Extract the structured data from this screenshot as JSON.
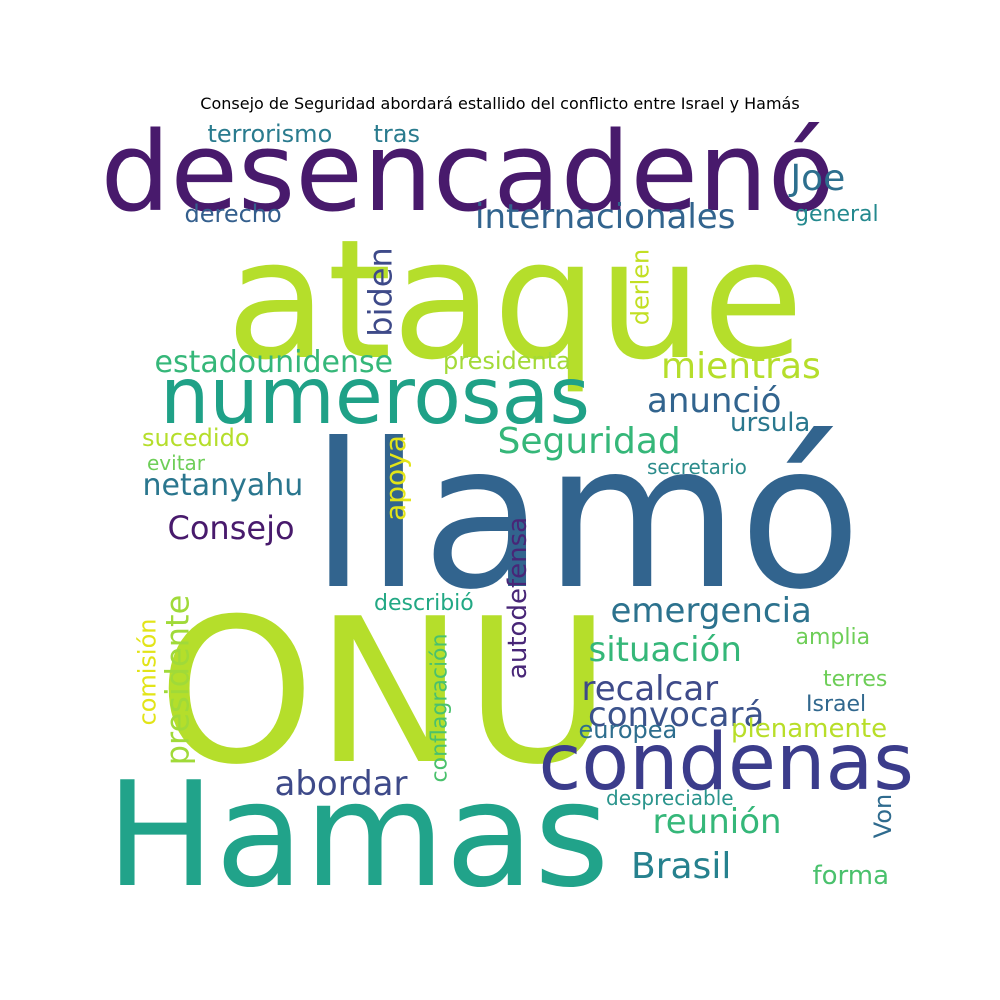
{
  "title": "Consejo de Seguridad abordará estallido del conflicto entre Israel y Hamás",
  "palette": {
    "purple": "#481a6c",
    "indigo": "#3b3c8b",
    "blue": "#32648e",
    "teal": "#24898e",
    "green": "#1fa187",
    "sea": "#35b779",
    "lime": "#b5de2b",
    "yellow": "#e2e418",
    "leaf": "#6ece58"
  },
  "words": [
    {
      "text": "desencadenó",
      "color": "#481a6c",
      "rotated": false
    },
    {
      "text": "ataque",
      "color": "#b5de2b",
      "rotated": false
    },
    {
      "text": "numerosas",
      "color": "#1fa187",
      "rotated": false
    },
    {
      "text": "llamó",
      "color": "#32648e",
      "rotated": false
    },
    {
      "text": "ONU",
      "color": "#b5de2b",
      "rotated": false
    },
    {
      "text": "Hamas",
      "color": "#21a38a",
      "rotated": false
    },
    {
      "text": "condenas",
      "color": "#3b3c8b",
      "rotated": false
    },
    {
      "text": "terrorismo",
      "color": "#2a7b8e",
      "rotated": false
    },
    {
      "text": "tras",
      "color": "#2a7b8e",
      "rotated": false
    },
    {
      "text": "Joe",
      "color": "#2d6f8e",
      "rotated": false
    },
    {
      "text": "derecho",
      "color": "#345f8d",
      "rotated": false
    },
    {
      "text": "internacionales",
      "color": "#32648e",
      "rotated": false
    },
    {
      "text": "general",
      "color": "#24898e",
      "rotated": false
    },
    {
      "text": "biden",
      "color": "#3e4a89",
      "rotated": true
    },
    {
      "text": "derlen",
      "color": "#c2df23",
      "rotated": true
    },
    {
      "text": "estadounidense",
      "color": "#35b779",
      "rotated": false
    },
    {
      "text": "presidenta",
      "color": "#a3da37",
      "rotated": false
    },
    {
      "text": "mientras",
      "color": "#b5de2b",
      "rotated": false
    },
    {
      "text": "anunció",
      "color": "#32648e",
      "rotated": false
    },
    {
      "text": "ursula",
      "color": "#2a788e",
      "rotated": false
    },
    {
      "text": "Seguridad",
      "color": "#35b779",
      "rotated": false
    },
    {
      "text": "sucedido",
      "color": "#b5de2b",
      "rotated": false
    },
    {
      "text": "evitar",
      "color": "#6ece58",
      "rotated": false
    },
    {
      "text": "secretario",
      "color": "#2c8c8c",
      "rotated": false
    },
    {
      "text": "netanyahu",
      "color": "#2a768e",
      "rotated": false
    },
    {
      "text": "apoya",
      "color": "#e2e418",
      "rotated": true
    },
    {
      "text": "Consejo",
      "color": "#481a6c",
      "rotated": false
    },
    {
      "text": "autodefensa",
      "color": "#482677",
      "rotated": true
    },
    {
      "text": "presidente",
      "color": "#a0da39",
      "rotated": true
    },
    {
      "text": "describió",
      "color": "#22a884",
      "rotated": false
    },
    {
      "text": "emergencia",
      "color": "#2c728e",
      "rotated": false
    },
    {
      "text": "comisión",
      "color": "#e2e418",
      "rotated": true
    },
    {
      "text": "conflagración",
      "color": "#4ac16d",
      "rotated": true
    },
    {
      "text": "amplia",
      "color": "#6ece58",
      "rotated": false
    },
    {
      "text": "situación",
      "color": "#35b779",
      "rotated": false
    },
    {
      "text": "recalcar",
      "color": "#3e4a89",
      "rotated": false
    },
    {
      "text": "terres",
      "color": "#6ece58",
      "rotated": false
    },
    {
      "text": "convocará",
      "color": "#3b528b",
      "rotated": false
    },
    {
      "text": "Israel",
      "color": "#31688e",
      "rotated": false
    },
    {
      "text": "europea",
      "color": "#2e6e8e",
      "rotated": false
    },
    {
      "text": "plenamente",
      "color": "#b8de29",
      "rotated": false
    },
    {
      "text": "abordar",
      "color": "#3e4a89",
      "rotated": false
    },
    {
      "text": "despreciable",
      "color": "#2a948c",
      "rotated": false
    },
    {
      "text": "reunión",
      "color": "#35b779",
      "rotated": false
    },
    {
      "text": "Von",
      "color": "#2f6b8e",
      "rotated": true
    },
    {
      "text": "Brasil",
      "color": "#26818e",
      "rotated": false
    },
    {
      "text": "forma",
      "color": "#4ac16d",
      "rotated": false
    }
  ]
}
